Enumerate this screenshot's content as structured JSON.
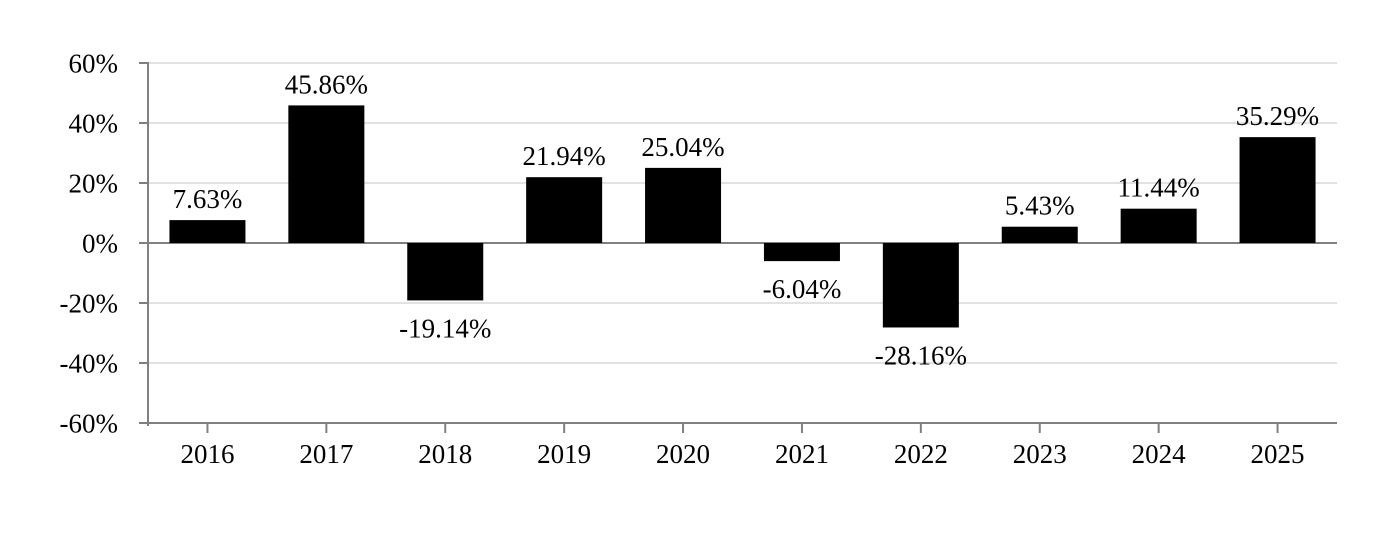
{
  "chart_data": {
    "type": "bar",
    "title": "",
    "xlabel": "",
    "ylabel": "",
    "categories": [
      "2016",
      "2017",
      "2018",
      "2019",
      "2020",
      "2021",
      "2022",
      "2023",
      "2024",
      "2025"
    ],
    "values": [
      7.63,
      45.86,
      -19.14,
      21.94,
      25.04,
      -6.04,
      -28.16,
      5.43,
      11.44,
      35.29
    ],
    "data_labels": [
      "7.63%",
      "45.86%",
      "-19.14%",
      "21.94%",
      "25.04%",
      "-6.04%",
      "-28.16%",
      "5.43%",
      "11.44%",
      "35.29%"
    ],
    "y_ticks": [
      {
        "value": 60,
        "label": "60%"
      },
      {
        "value": 40,
        "label": "40%"
      },
      {
        "value": 20,
        "label": "20%"
      },
      {
        "value": 0,
        "label": "0%"
      },
      {
        "value": -20,
        "label": "-20%"
      },
      {
        "value": -40,
        "label": "-40%"
      },
      {
        "value": -60,
        "label": "-60%"
      }
    ],
    "ylim": [
      -60,
      60
    ],
    "grid": true,
    "legend_position": "none",
    "bar_color": "#000000",
    "gridline_color": "#d9d9d9",
    "axis_color": "#808080",
    "text_color": "#000000"
  }
}
